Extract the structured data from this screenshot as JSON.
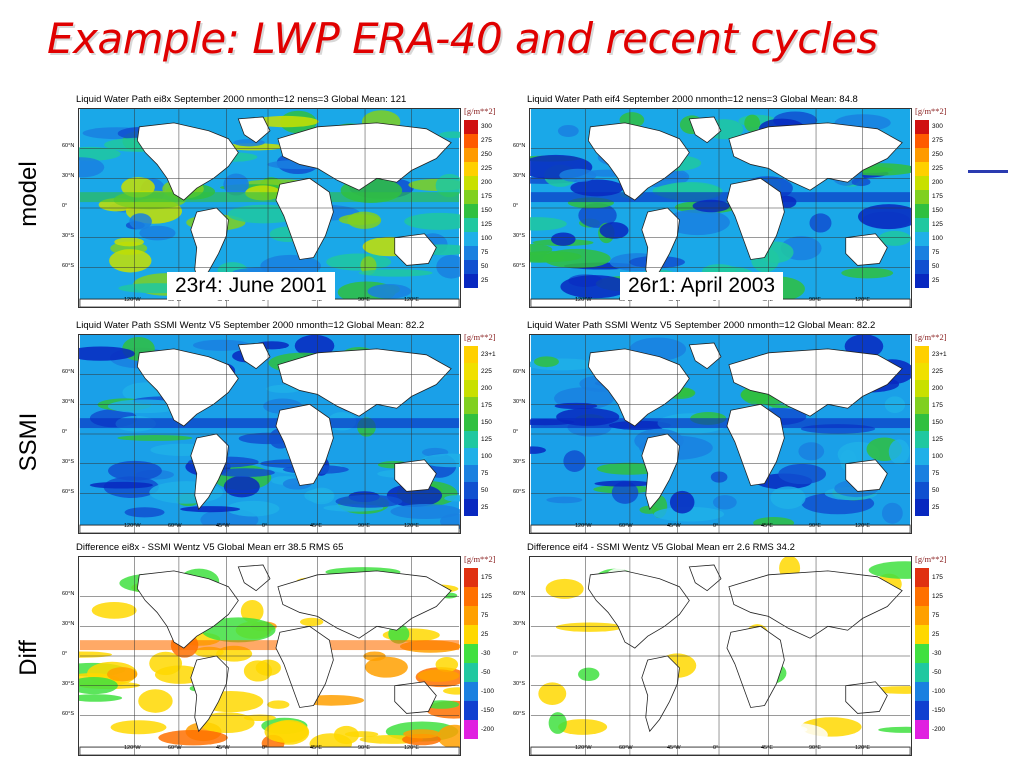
{
  "slide": {
    "title": "Example: LWP ERA-40 and recent cycles",
    "row_labels": [
      "model",
      "SSMI",
      "Diff"
    ],
    "accent_color": "#2a3bb0",
    "title_color": "#e00000"
  },
  "panels": [
    {
      "id": "model-left",
      "title": "Liquid Water Path  ei8x  September 2000 nmonth=12 nens=3  Global Mean: 121",
      "units": "[g/m**2]",
      "legend": [
        "300",
        "275",
        "250",
        "225",
        "200",
        "175",
        "150",
        "125",
        "100",
        "75",
        "50",
        "25"
      ],
      "colors": [
        "#d01010",
        "#ff5a00",
        "#ff9a00",
        "#ffd000",
        "#c8e000",
        "#80d020",
        "#30c040",
        "#20c8a0",
        "#20b0e8",
        "#1a80e0",
        "#1050d0",
        "#0828c0"
      ],
      "caption": "23r4: June 2001",
      "kind": "model"
    },
    {
      "id": "model-right",
      "title": "Liquid Water Path  eif4  September 2000 nmonth=12 nens=3  Global Mean: 84.8",
      "units": "[g/m**2]",
      "legend": [
        "300",
        "275",
        "250",
        "225",
        "200",
        "175",
        "150",
        "125",
        "100",
        "75",
        "50",
        "25"
      ],
      "colors": [
        "#d01010",
        "#ff5a00",
        "#ff9a00",
        "#ffd000",
        "#c8e000",
        "#80d020",
        "#30c040",
        "#20c8a0",
        "#20b0e8",
        "#1a80e0",
        "#1050d0",
        "#0828c0"
      ],
      "caption": "26r1: April 2003",
      "kind": "model2"
    },
    {
      "id": "ssmi-left",
      "title": "Liquid Water Path  SSMI Wentz V5  September 2000 nmonth=12  Global Mean:  82.2",
      "units": "[g/m**2]",
      "legend": [
        "23+1",
        "225",
        "200",
        "175",
        "150",
        "125",
        "100",
        "75",
        "50",
        "25"
      ],
      "colors": [
        "#ffd000",
        "#f0e000",
        "#c8e000",
        "#80d020",
        "#30c040",
        "#20c8a0",
        "#20b0e8",
        "#1a80e0",
        "#1050d0",
        "#0828c0"
      ],
      "caption": "",
      "kind": "ssmi"
    },
    {
      "id": "ssmi-right",
      "title": "Liquid Water Path  SSMI Wentz V5  September 2000 nmonth=12  Global Mean:  82.2",
      "units": "[g/m**2]",
      "legend": [
        "23+1",
        "225",
        "200",
        "175",
        "150",
        "125",
        "100",
        "75",
        "50",
        "25"
      ],
      "colors": [
        "#ffd000",
        "#f0e000",
        "#c8e000",
        "#80d020",
        "#30c040",
        "#20c8a0",
        "#20b0e8",
        "#1a80e0",
        "#1050d0",
        "#0828c0"
      ],
      "caption": "",
      "kind": "ssmi"
    },
    {
      "id": "diff-left",
      "title": "Difference  ei8x - SSMI Wentz V5  Global Mean err 38.5 RMS 65",
      "units": "[g/m**2]",
      "legend": [
        "175",
        "125",
        "75",
        "25",
        "-30",
        "-50",
        "-100",
        "-150",
        "-200"
      ],
      "colors": [
        "#e03010",
        "#ff7000",
        "#ffa000",
        "#ffd800",
        "#40e040",
        "#20c8a0",
        "#1a80e0",
        "#1040d0",
        "#e020e0"
      ],
      "caption": "",
      "kind": "diff"
    },
    {
      "id": "diff-right",
      "title": "Difference  eif4 - SSMI Wentz V5  Global Mean err 2.6 RMS 34.2",
      "units": "[g/m**2]",
      "legend": [
        "175",
        "125",
        "75",
        "25",
        "-30",
        "-50",
        "-100",
        "-150",
        "-200"
      ],
      "colors": [
        "#e03010",
        "#ff7000",
        "#ffa000",
        "#ffd800",
        "#40e040",
        "#20c8a0",
        "#1a80e0",
        "#1040d0",
        "#e020e0"
      ],
      "caption": "",
      "kind": "diff2"
    }
  ],
  "axes": {
    "lat_labels": [
      "60°N",
      "30°N",
      "0°",
      "30°S",
      "60°S"
    ],
    "lon_labels": [
      "120°W",
      "60°W",
      "45°W",
      "0°",
      "45°E",
      "90°E",
      "120°E"
    ]
  }
}
